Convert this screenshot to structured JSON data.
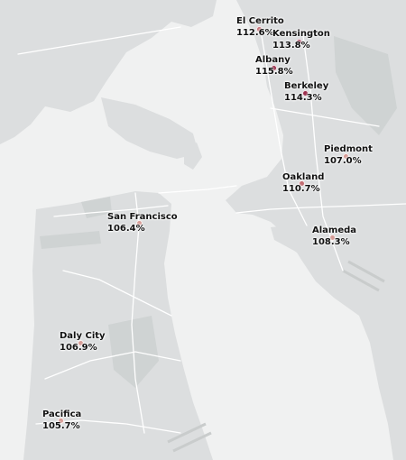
{
  "colors": {
    "water": "#f0f1f1",
    "land": "#dcdedf",
    "park": "#cfd3d3",
    "road": "#ffffff",
    "marker_low": "#d69a94",
    "marker_mid": "#c26a70",
    "marker_high": "#9a2c4a"
  },
  "cities": [
    {
      "id": "el-cerrito",
      "name": "El Cerrito",
      "value": "112.6%",
      "level": "mid"
    },
    {
      "id": "kensington",
      "name": "Kensington",
      "value": "113.8%",
      "level": "high"
    },
    {
      "id": "albany",
      "name": "Albany",
      "value": "115.8%",
      "level": "high"
    },
    {
      "id": "berkeley",
      "name": "Berkeley",
      "value": "114.3%",
      "level": "high"
    },
    {
      "id": "piedmont",
      "name": "Piedmont",
      "value": "107.0%",
      "level": "low"
    },
    {
      "id": "oakland",
      "name": "Oakland",
      "value": "110.7%",
      "level": "mid"
    },
    {
      "id": "alameda",
      "name": "Alameda",
      "value": "108.3%",
      "level": "low"
    },
    {
      "id": "san-francisco",
      "name": "San Francisco",
      "value": "106.4%",
      "level": "low"
    },
    {
      "id": "daly-city",
      "name": "Daly City",
      "value": "106.9%",
      "level": "low"
    },
    {
      "id": "pacifica",
      "name": "Pacifica",
      "value": "105.7%",
      "level": "low"
    }
  ]
}
